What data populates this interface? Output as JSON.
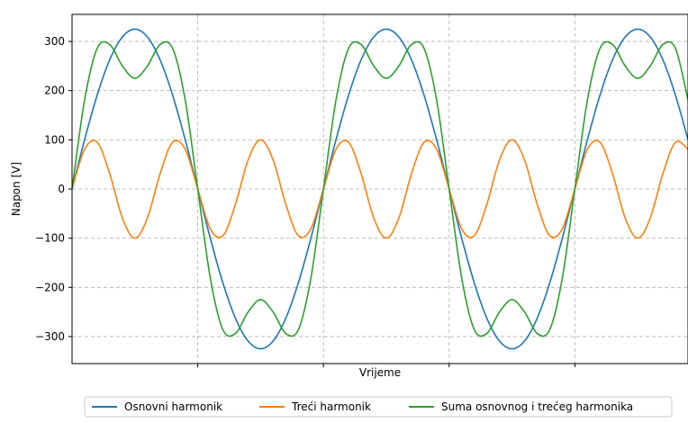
{
  "chart_data": {
    "type": "line",
    "xlabel": "Vrijeme",
    "ylabel": "Napon [V]",
    "x_unit_note": "",
    "xlim": [
      0,
      0.049
    ],
    "ylim": [
      -355,
      355
    ],
    "yticks": [
      -300,
      -200,
      -100,
      0,
      100,
      200,
      300
    ],
    "ytick_labels": [
      "−300",
      "−200",
      "−100",
      "0",
      "100",
      "200",
      "300"
    ],
    "xticks": [
      0.01,
      0.02,
      0.03,
      0.04
    ],
    "grid": true,
    "legend_position": "bottom-center",
    "series": [
      {
        "name": "Osnovni harmonik",
        "color": "#1f77b4",
        "x": [
          0,
          0.001,
          0.002,
          0.003,
          0.004,
          0.005,
          0.006,
          0.007,
          0.008,
          0.009,
          0.01,
          0.011,
          0.012,
          0.013,
          0.014,
          0.015,
          0.016,
          0.017,
          0.018,
          0.019,
          0.02,
          0.021,
          0.022,
          0.023,
          0.024,
          0.025,
          0.026,
          0.027,
          0.028,
          0.029,
          0.03,
          0.031,
          0.032,
          0.033,
          0.034,
          0.035,
          0.036,
          0.037,
          0.038,
          0.039,
          0.04,
          0.041,
          0.042,
          0.043,
          0.044,
          0.045,
          0.046,
          0.047,
          0.048,
          0.049
        ],
        "values": [
          0,
          100.4,
          191.0,
          262.9,
          309.1,
          325.0,
          309.1,
          262.9,
          191.0,
          100.4,
          0,
          -100.4,
          -191.0,
          -262.9,
          -309.1,
          -325.0,
          -309.1,
          -262.9,
          -191.0,
          -100.4,
          0,
          100.4,
          191.0,
          262.9,
          309.1,
          325.0,
          309.1,
          262.9,
          191.0,
          100.4,
          0,
          -100.4,
          -191.0,
          -262.9,
          -309.1,
          -325.0,
          -309.1,
          -262.9,
          -191.0,
          -100.4,
          0,
          100.4,
          191.0,
          262.9,
          309.1,
          325.0,
          309.1,
          262.9,
          191.0,
          100.4
        ]
      },
      {
        "name": "Treći harmonik",
        "color": "#ff7f0e",
        "x": [
          0,
          0.001,
          0.002,
          0.003,
          0.004,
          0.005,
          0.006,
          0.007,
          0.008,
          0.009,
          0.01,
          0.011,
          0.012,
          0.013,
          0.014,
          0.015,
          0.016,
          0.017,
          0.018,
          0.019,
          0.02,
          0.021,
          0.022,
          0.023,
          0.024,
          0.025,
          0.026,
          0.027,
          0.028,
          0.029,
          0.03,
          0.031,
          0.032,
          0.033,
          0.034,
          0.035,
          0.036,
          0.037,
          0.038,
          0.039,
          0.04,
          0.041,
          0.042,
          0.043,
          0.044,
          0.045,
          0.046,
          0.047,
          0.048,
          0.049
        ],
        "values": [
          0,
          80.9,
          95.1,
          30.9,
          -58.8,
          -100,
          -58.8,
          30.9,
          95.1,
          80.9,
          0,
          -80.9,
          -95.1,
          -30.9,
          58.8,
          100,
          58.8,
          -30.9,
          -95.1,
          -80.9,
          0,
          80.9,
          95.1,
          30.9,
          -58.8,
          -100,
          -58.8,
          30.9,
          95.1,
          80.9,
          0,
          -80.9,
          -95.1,
          -30.9,
          58.8,
          100,
          58.8,
          -30.9,
          -95.1,
          -80.9,
          0,
          80.9,
          95.1,
          30.9,
          -58.8,
          -100,
          -58.8,
          30.9,
          95.1,
          80.9
        ]
      },
      {
        "name": "Suma osnovnog i trećeg harmonika",
        "color": "#2ca02c",
        "x": [
          0,
          0.001,
          0.002,
          0.003,
          0.004,
          0.005,
          0.006,
          0.007,
          0.008,
          0.009,
          0.01,
          0.011,
          0.012,
          0.013,
          0.014,
          0.015,
          0.016,
          0.017,
          0.018,
          0.019,
          0.02,
          0.021,
          0.022,
          0.023,
          0.024,
          0.025,
          0.026,
          0.027,
          0.028,
          0.029,
          0.03,
          0.031,
          0.032,
          0.033,
          0.034,
          0.035,
          0.036,
          0.037,
          0.038,
          0.039,
          0.04,
          0.041,
          0.042,
          0.043,
          0.044,
          0.045,
          0.046,
          0.047,
          0.048,
          0.049
        ],
        "values": [
          0,
          181.3,
          286.1,
          293.8,
          250.3,
          225.0,
          250.3,
          293.8,
          286.1,
          181.3,
          0,
          -181.3,
          -286.1,
          -293.8,
          -250.3,
          -225.0,
          -250.3,
          -293.8,
          -286.1,
          -181.3,
          0,
          181.3,
          286.1,
          293.8,
          250.3,
          225.0,
          250.3,
          293.8,
          286.1,
          181.3,
          0,
          -181.3,
          -286.1,
          -293.8,
          -250.3,
          -225.0,
          -250.3,
          -293.8,
          -286.1,
          -181.3,
          0,
          181.3,
          286.1,
          293.8,
          250.3,
          225.0,
          250.3,
          293.8,
          286.1,
          181.3
        ]
      }
    ]
  }
}
